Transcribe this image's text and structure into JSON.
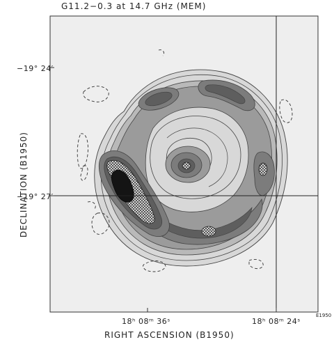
{
  "title": "G11.2−0.3 at 14.7 GHz   (MEM)",
  "axes": {
    "xlabel": "RIGHT ASCENSION (B1950)",
    "ylabel": "DECLINATION (B1950)",
    "dec_ticks": [
      "−19° 24′",
      "−19° 27′"
    ],
    "ra_ticks": [
      "18ʰ 08ᵐ 36ˢ",
      "18ʰ 08ᵐ 24ˢ"
    ],
    "epoch_tag": "E1950"
  },
  "style": {
    "frame_bg": "#eeeeee",
    "levels": [
      "#d8d8d8",
      "#b9b9b9",
      "#9b9b9b",
      "#7c7c7c",
      "#5e5e5e"
    ],
    "peak": "#141414"
  }
}
